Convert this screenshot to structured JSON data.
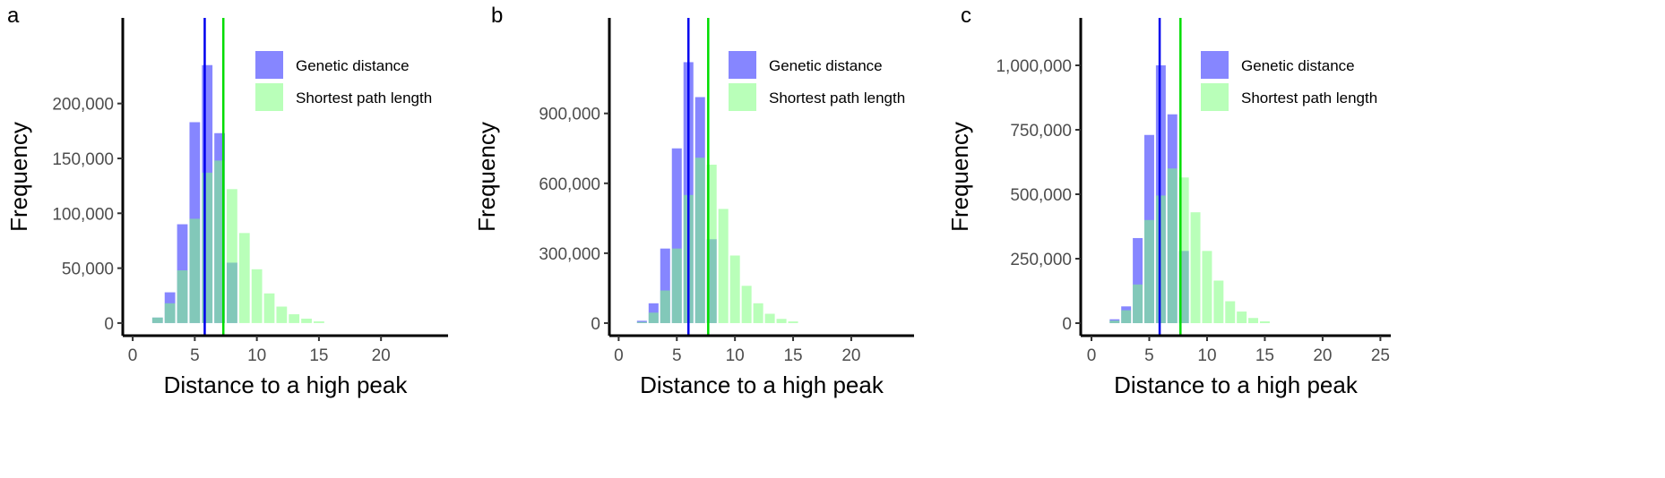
{
  "chart_data": [
    {
      "type": "bar",
      "panel_label": "a",
      "xlabel": "Distance to a high peak",
      "ylabel": "Frequency",
      "xticks": [
        0,
        5,
        10,
        15,
        20
      ],
      "yticks": [
        0,
        50000,
        100000,
        150000,
        200000
      ],
      "ytick_labels": [
        "0",
        "50,000",
        "100,000",
        "150,000",
        "200,000"
      ],
      "xlim": [
        -0.8,
        25.4
      ],
      "ylim": [
        -11500,
        278000
      ],
      "legend_position": "top-right",
      "x": [
        2,
        3,
        4,
        5,
        6,
        7,
        8,
        9,
        10,
        11,
        12,
        13,
        14,
        15
      ],
      "series": [
        {
          "name": "Genetic distance",
          "color": "#7f7fff",
          "values": [
            5000,
            28000,
            90000,
            183000,
            235000,
            173000,
            55000,
            0,
            0,
            0,
            0,
            0,
            0,
            0
          ],
          "mean": 5.8,
          "line_color": "#0000ee"
        },
        {
          "name": "Shortest path length",
          "color": "#7fff7f",
          "values": [
            5000,
            18000,
            48000,
            95000,
            137000,
            148000,
            122000,
            82000,
            49000,
            27000,
            15000,
            8000,
            4000,
            1500
          ],
          "mean": 7.3,
          "line_color": "#00dd00"
        }
      ]
    },
    {
      "type": "bar",
      "panel_label": "b",
      "xlabel": "Distance to a high peak",
      "ylabel": "Frequency",
      "xticks": [
        0,
        5,
        10,
        15,
        20
      ],
      "yticks": [
        0,
        300000,
        600000,
        900000
      ],
      "ytick_labels": [
        "0",
        "300,000",
        "600,000",
        "900,000"
      ],
      "xlim": [
        -0.8,
        25.4
      ],
      "ylim": [
        -54000,
        1310000
      ],
      "legend_position": "top-right",
      "x": [
        2,
        3,
        4,
        5,
        6,
        7,
        8,
        9,
        10,
        11,
        12,
        13,
        14,
        15
      ],
      "series": [
        {
          "name": "Genetic distance",
          "color": "#7f7fff",
          "values": [
            10000,
            85000,
            320000,
            750000,
            1120000,
            970000,
            360000,
            0,
            0,
            0,
            0,
            0,
            0,
            0
          ],
          "mean": 6.0,
          "line_color": "#0000ee"
        },
        {
          "name": "Shortest path length",
          "color": "#7fff7f",
          "values": [
            5000,
            45000,
            140000,
            320000,
            550000,
            710000,
            680000,
            490000,
            290000,
            160000,
            85000,
            40000,
            18000,
            7000
          ],
          "mean": 7.7,
          "line_color": "#00dd00"
        }
      ]
    },
    {
      "type": "bar",
      "panel_label": "c",
      "xlabel": "Distance to a high peak",
      "ylabel": "Frequency",
      "xticks": [
        0,
        5,
        10,
        15,
        20,
        25
      ],
      "yticks": [
        0,
        250000,
        500000,
        750000,
        1000000
      ],
      "ytick_labels": [
        "0",
        "250,000",
        "500,000",
        "750,000",
        "1,000,000"
      ],
      "xlim": [
        -0.93,
        25.9
      ],
      "ylim": [
        -48600,
        1184000
      ],
      "legend_position": "top-right",
      "x": [
        2,
        3,
        4,
        5,
        6,
        7,
        8,
        9,
        10,
        11,
        12,
        13,
        14,
        15
      ],
      "series": [
        {
          "name": "Genetic distance",
          "color": "#7f7fff",
          "values": [
            15000,
            65000,
            330000,
            730000,
            1000000,
            810000,
            280000,
            0,
            0,
            0,
            0,
            0,
            0,
            0
          ],
          "mean": 5.9,
          "line_color": "#0000ee"
        },
        {
          "name": "Shortest path length",
          "color": "#7fff7f",
          "values": [
            10000,
            50000,
            150000,
            400000,
            495000,
            600000,
            565000,
            430000,
            280000,
            165000,
            85000,
            45000,
            20000,
            7000
          ],
          "mean": 7.7,
          "line_color": "#00dd00"
        }
      ]
    }
  ]
}
